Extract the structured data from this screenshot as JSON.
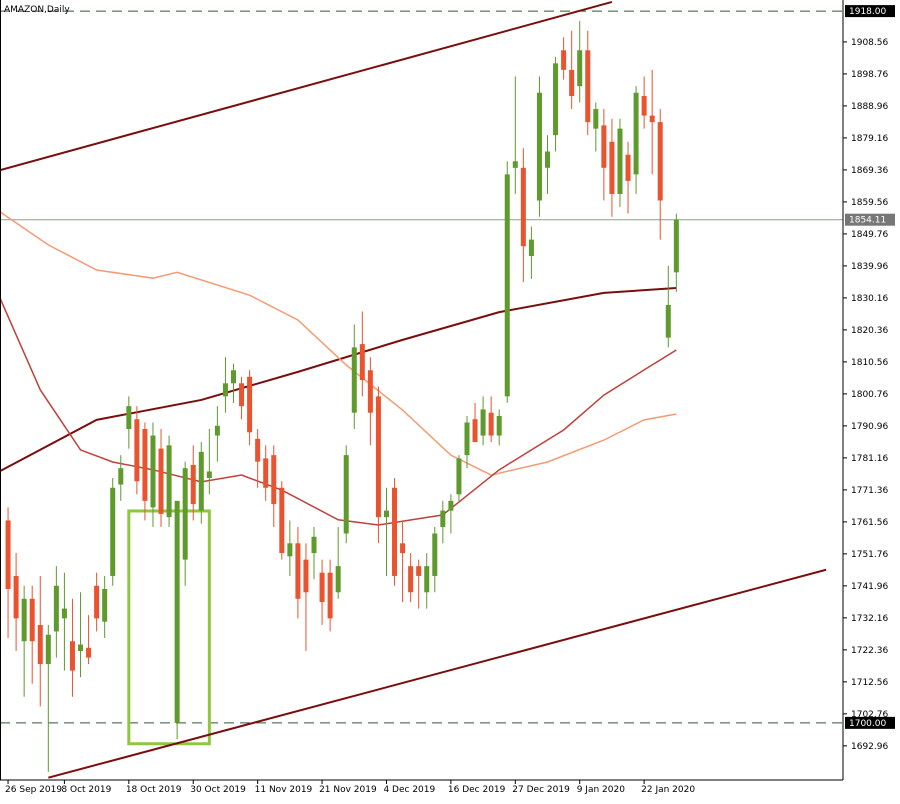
{
  "chart_data": {
    "type": "candlestick",
    "title": "AMAZON,Daily",
    "up_color": "#5e9a2c",
    "down_color": "#e9532f",
    "xlim": [
      -1,
      103.7
    ],
    "ylim": [
      1682.5,
      1921.4
    ],
    "yticks": [
      1908.56,
      1898.76,
      1888.96,
      1879.16,
      1869.36,
      1859.56,
      1849.76,
      1839.96,
      1830.16,
      1820.36,
      1810.56,
      1800.76,
      1790.96,
      1781.16,
      1771.36,
      1761.56,
      1751.76,
      1741.96,
      1732.16,
      1722.36,
      1712.56,
      1702.76,
      1692.96
    ],
    "xticks": [
      {
        "value": 0,
        "label": "26 Sep 2019"
      },
      {
        "value": 7,
        "label": "8 Oct 2019"
      },
      {
        "value": 15,
        "label": "18 Oct 2019"
      },
      {
        "value": 23,
        "label": "30 Oct 2019"
      },
      {
        "value": 31,
        "label": "11 Nov 2019"
      },
      {
        "value": 39,
        "label": "21 Nov 2019"
      },
      {
        "value": 47,
        "label": "4 Dec 2019"
      },
      {
        "value": 55,
        "label": "16 Dec 2019"
      },
      {
        "value": 63,
        "label": "27 Dec 2019"
      },
      {
        "value": 71,
        "label": "9 Jan 2020"
      },
      {
        "value": 79,
        "label": "22 Jan 2020"
      }
    ],
    "ohlc": [
      [
        1762,
        1766,
        1726,
        1741
      ],
      [
        1745,
        1752,
        1722,
        1732
      ],
      [
        1725,
        1742,
        1708,
        1738
      ],
      [
        1738,
        1742,
        1712,
        1725
      ],
      [
        1730,
        1745,
        1705,
        1718
      ],
      [
        1718,
        1730,
        1685,
        1727
      ],
      [
        1728,
        1748,
        1720,
        1742
      ],
      [
        1732,
        1746,
        1716,
        1735
      ],
      [
        1725,
        1738,
        1708,
        1716
      ],
      [
        1722,
        1740,
        1714,
        1724
      ],
      [
        1723,
        1733,
        1718,
        1720
      ],
      [
        1742,
        1746,
        1728,
        1732
      ],
      [
        1731,
        1745,
        1726,
        1741
      ],
      [
        1745,
        1775,
        1742,
        1772
      ],
      [
        1773,
        1782,
        1768,
        1778
      ],
      [
        1790,
        1800,
        1784,
        1797
      ],
      [
        1793,
        1797,
        1770,
        1774
      ],
      [
        1790,
        1792,
        1762,
        1768
      ],
      [
        1766,
        1792,
        1760,
        1788
      ],
      [
        1784,
        1790,
        1760,
        1764
      ],
      [
        1763,
        1788,
        1760,
        1785
      ],
      [
        1700,
        1768,
        1695,
        1768
      ],
      [
        1750,
        1780,
        1742,
        1778
      ],
      [
        1779,
        1785,
        1762,
        1767
      ],
      [
        1765,
        1786,
        1761,
        1783
      ],
      [
        1775,
        1790,
        1770,
        1777
      ],
      [
        1788,
        1797,
        1780,
        1791
      ],
      [
        1800,
        1812,
        1795,
        1804
      ],
      [
        1804,
        1810,
        1798,
        1808
      ],
      [
        1804,
        1806,
        1793,
        1797
      ],
      [
        1806,
        1808,
        1785,
        1789
      ],
      [
        1787,
        1790,
        1772,
        1780
      ],
      [
        1781,
        1785,
        1768,
        1772
      ],
      [
        1782,
        1785,
        1760,
        1767
      ],
      [
        1772,
        1774,
        1750,
        1752
      ],
      [
        1751,
        1762,
        1745,
        1755
      ],
      [
        1755,
        1760,
        1732,
        1738
      ],
      [
        1750,
        1755,
        1722,
        1740
      ],
      [
        1752,
        1760,
        1744,
        1757
      ],
      [
        1746,
        1750,
        1730,
        1737
      ],
      [
        1746,
        1750,
        1728,
        1732
      ],
      [
        1740,
        1760,
        1738,
        1748
      ],
      [
        1758,
        1785,
        1755,
        1782
      ],
      [
        1795,
        1822,
        1790,
        1815
      ],
      [
        1816,
        1826,
        1800,
        1805
      ],
      [
        1808,
        1812,
        1785,
        1795
      ],
      [
        1800,
        1803,
        1755,
        1763
      ],
      [
        1763,
        1772,
        1745,
        1765
      ],
      [
        1772,
        1775,
        1742,
        1745
      ],
      [
        1755,
        1762,
        1737,
        1752
      ],
      [
        1748,
        1752,
        1737,
        1740
      ],
      [
        1748,
        1750,
        1735,
        1745
      ],
      [
        1740,
        1752,
        1735,
        1748
      ],
      [
        1745,
        1760,
        1740,
        1758
      ],
      [
        1760,
        1768,
        1755,
        1765
      ],
      [
        1765,
        1770,
        1758,
        1768
      ],
      [
        1770,
        1782,
        1768,
        1781
      ],
      [
        1782,
        1794,
        1778,
        1792
      ],
      [
        1793,
        1798,
        1786,
        1786
      ],
      [
        1788,
        1800,
        1785,
        1796
      ],
      [
        1795,
        1800,
        1786,
        1788
      ],
      [
        1788,
        1796,
        1785,
        1794
      ],
      [
        1800,
        1872,
        1798,
        1868
      ],
      [
        1870,
        1898,
        1862,
        1872
      ],
      [
        1870,
        1876,
        1835,
        1846
      ],
      [
        1843,
        1852,
        1836,
        1848
      ],
      [
        1860,
        1898,
        1855,
        1893
      ],
      [
        1870,
        1880,
        1862,
        1875
      ],
      [
        1880,
        1904,
        1875,
        1902
      ],
      [
        1906,
        1910,
        1897,
        1900
      ],
      [
        1900,
        1912,
        1888,
        1892
      ],
      [
        1895,
        1915,
        1890,
        1906
      ],
      [
        1906,
        1912,
        1880,
        1884
      ],
      [
        1882,
        1890,
        1875,
        1888
      ],
      [
        1883,
        1888,
        1860,
        1870
      ],
      [
        1878,
        1885,
        1855,
        1862
      ],
      [
        1862,
        1885,
        1858,
        1882
      ],
      [
        1874,
        1878,
        1856,
        1866
      ],
      [
        1868,
        1895,
        1862,
        1893
      ],
      [
        1892,
        1898,
        1882,
        1886
      ],
      [
        1886,
        1900,
        1868,
        1884
      ],
      [
        1884,
        1888,
        1848,
        1860
      ],
      [
        1818,
        1840,
        1815,
        1828
      ],
      [
        1838,
        1856,
        1832,
        1854.11
      ]
    ],
    "lines": [
      {
        "color": "#7a0d0d",
        "width": 2,
        "x": [
          -1,
          11,
          24,
          36,
          49,
          61,
          74,
          83
        ],
        "values": [
          1777.1,
          1792.8,
          1798.9,
          1807.5,
          1817.3,
          1825.8,
          1831.7,
          1833.2
        ]
      },
      {
        "color": "#f59a72",
        "width": 1.5,
        "x": [
          -1,
          5,
          11,
          18,
          21,
          30,
          36,
          42,
          49,
          55,
          60,
          67,
          74,
          79,
          83
        ],
        "values": [
          1856.5,
          1846.4,
          1838.7,
          1836.2,
          1838.0,
          1831.0,
          1823.4,
          1809.6,
          1795.8,
          1782.0,
          1775.9,
          1779.9,
          1786.6,
          1792.8,
          1794.6
        ]
      },
      {
        "color": "#c0403a",
        "width": 1.5,
        "x": [
          -1,
          4,
          9,
          13,
          18,
          24,
          29,
          34,
          41,
          46,
          54,
          61,
          69,
          74,
          79,
          83
        ],
        "values": [
          1830.1,
          1802.0,
          1783.6,
          1779.9,
          1777.5,
          1773.8,
          1775.9,
          1771.3,
          1762.2,
          1760.6,
          1763.7,
          1777.5,
          1789.7,
          1800.4,
          1808.1,
          1814.2
        ]
      }
    ],
    "trendlines": [
      {
        "color": "#7a0d0d",
        "x": [
          -1,
          75
        ],
        "values": [
          1869.3,
          1920.8
        ]
      },
      {
        "color": "#7a0d0d",
        "x": [
          5,
          101.6
        ],
        "values": [
          1683.2,
          1746.9
        ]
      }
    ],
    "hlines": [
      {
        "value": 1918,
        "label": "1918.00",
        "dashed": true,
        "color": "#2f5a2f",
        "label_bg": "#000000"
      },
      {
        "value": 1854.11,
        "label": "1854.11",
        "dashed": false,
        "color": "#8aa08a",
        "label_bg": "#777777"
      },
      {
        "value": 1700,
        "label": "1700.00",
        "dashed": true,
        "color": "#2f5a2f",
        "label_bg": "#000000"
      }
    ],
    "box": {
      "x": [
        15,
        25
      ],
      "y": [
        1693.6,
        1764.9
      ],
      "color": "#8dc63f"
    }
  }
}
